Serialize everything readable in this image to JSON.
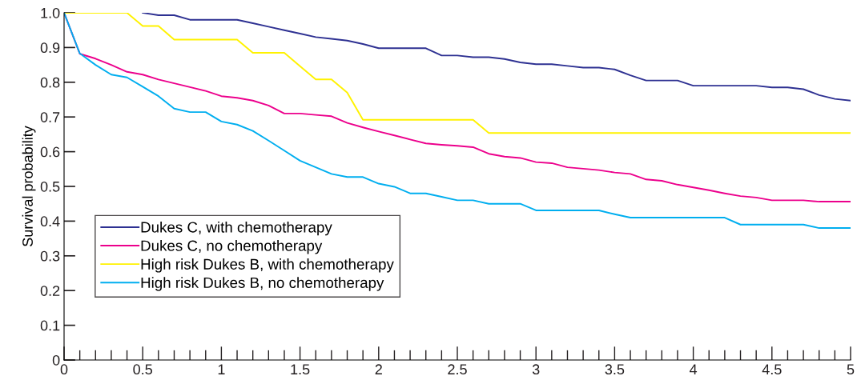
{
  "chart_data": {
    "type": "line",
    "ylabel": "Survival probability",
    "x": [
      0,
      0.1,
      0.2,
      0.3,
      0.4,
      0.5,
      0.6,
      0.7,
      0.8,
      0.9,
      1,
      1.1,
      1.2,
      1.3,
      1.4,
      1.5,
      1.6,
      1.7,
      1.8,
      1.9,
      2,
      2.1,
      2.2,
      2.3,
      2.4,
      2.5,
      2.6,
      2.7,
      2.8,
      2.9,
      3,
      3.1,
      3.2,
      3.3,
      3.4,
      3.5,
      3.6,
      3.7,
      3.8,
      3.9,
      4,
      4.1,
      4.2,
      4.3,
      4.4,
      4.5,
      4.6,
      4.7,
      4.8,
      4.9,
      5
    ],
    "series": [
      {
        "name": "Dukes C, with chemotherapy",
        "color": "#2e3192",
        "values": [
          null,
          null,
          null,
          null,
          null,
          1,
          0.993,
          0.993,
          0.98,
          0.98,
          0.98,
          0.98,
          0.97,
          0.96,
          0.95,
          0.94,
          0.93,
          0.925,
          0.92,
          0.91,
          0.898,
          0.898,
          0.898,
          0.898,
          0.877,
          0.877,
          0.872,
          0.872,
          0.867,
          0.857,
          0.852,
          0.852,
          0.847,
          0.842,
          0.842,
          0.837,
          0.82,
          0.805,
          0.805,
          0.805,
          0.79,
          0.79,
          0.79,
          0.79,
          0.79,
          0.785,
          0.785,
          0.78,
          0.763,
          0.752,
          0.747
        ]
      },
      {
        "name": "Dukes C, no chemotherapy",
        "color": "#ec008c",
        "values": [
          1,
          0.882,
          0.868,
          0.85,
          0.83,
          0.822,
          0.808,
          0.797,
          0.786,
          0.775,
          0.76,
          0.755,
          0.747,
          0.733,
          0.71,
          0.71,
          0.706,
          0.702,
          0.683,
          0.67,
          0.658,
          0.647,
          0.635,
          0.624,
          0.62,
          0.617,
          0.613,
          0.594,
          0.586,
          0.582,
          0.57,
          0.567,
          0.555,
          0.551,
          0.547,
          0.54,
          0.536,
          0.52,
          0.516,
          0.505,
          0.497,
          0.489,
          0.48,
          0.472,
          0.468,
          0.46,
          0.46,
          0.46,
          0.456,
          0.456,
          0.456
        ]
      },
      {
        "name": "High risk Dukes B, with chemotherapy",
        "color": "#fff200",
        "values": [
          1,
          1,
          1,
          1,
          1,
          0.962,
          0.962,
          0.923,
          0.923,
          0.923,
          0.923,
          0.923,
          0.885,
          0.885,
          0.885,
          0.846,
          0.808,
          0.808,
          0.77,
          0.692,
          0.692,
          0.692,
          0.692,
          0.692,
          0.692,
          0.692,
          0.692,
          0.654,
          0.654,
          0.654,
          0.654,
          0.654,
          0.654,
          0.654,
          0.654,
          0.654,
          0.654,
          0.654,
          0.654,
          0.654,
          0.654,
          0.654,
          0.654,
          0.654,
          0.654,
          0.654,
          0.654,
          0.654,
          0.654,
          0.654,
          0.654
        ]
      },
      {
        "name": "High risk Dukes B, no chemotherapy",
        "color": "#00aeef",
        "values": [
          1,
          0.883,
          0.85,
          0.822,
          0.814,
          0.787,
          0.76,
          0.724,
          0.714,
          0.714,
          0.687,
          0.678,
          0.66,
          0.632,
          0.603,
          0.574,
          0.555,
          0.536,
          0.527,
          0.527,
          0.508,
          0.499,
          0.48,
          0.48,
          0.47,
          0.46,
          0.46,
          0.45,
          0.45,
          0.45,
          0.431,
          0.431,
          0.431,
          0.431,
          0.431,
          0.42,
          0.41,
          0.41,
          0.41,
          0.41,
          0.41,
          0.41,
          0.41,
          0.39,
          0.39,
          0.39,
          0.39,
          0.39,
          0.38,
          0.38,
          0.38
        ]
      }
    ],
    "xlim": [
      0,
      5
    ],
    "ylim": [
      0,
      1
    ],
    "xticks": [
      0,
      {
        "value": 0.1,
        "label": null
      },
      {
        "value": 0.2,
        "label": null
      },
      {
        "value": 0.3,
        "label": null
      },
      {
        "value": 0.4,
        "label": null
      },
      0.5,
      {
        "value": 0.6,
        "label": null
      },
      {
        "value": 0.7,
        "label": null
      },
      {
        "value": 0.8,
        "label": null
      },
      {
        "value": 0.9,
        "label": null
      },
      1,
      {
        "value": 1.1,
        "label": null
      },
      {
        "value": 1.2,
        "label": null
      },
      {
        "value": 1.3,
        "label": null
      },
      {
        "value": 1.4,
        "label": null
      },
      1.5,
      {
        "value": 1.6,
        "label": null
      },
      {
        "value": 1.7,
        "label": null
      },
      {
        "value": 1.8,
        "label": null
      },
      {
        "value": 1.9,
        "label": null
      },
      2,
      {
        "value": 2.1,
        "label": null
      },
      {
        "value": 2.2,
        "label": null
      },
      {
        "value": 2.3,
        "label": null
      },
      {
        "value": 2.4,
        "label": null
      },
      2.5,
      {
        "value": 2.6,
        "label": null
      },
      {
        "value": 2.7,
        "label": null
      },
      {
        "value": 2.8,
        "label": null
      },
      {
        "value": 2.9,
        "label": null
      },
      3,
      {
        "value": 3.1,
        "label": null
      },
      {
        "value": 3.2,
        "label": null
      },
      {
        "value": 3.3,
        "label": null
      },
      {
        "value": 3.4,
        "label": null
      },
      3.5,
      {
        "value": 3.6,
        "label": null
      },
      {
        "value": 3.7,
        "label": null
      },
      {
        "value": 3.8,
        "label": null
      },
      {
        "value": 3.9,
        "label": null
      },
      4,
      {
        "value": 4.1,
        "label": null
      },
      {
        "value": 4.2,
        "label": null
      },
      {
        "value": 4.3,
        "label": null
      },
      {
        "value": 4.4,
        "label": null
      },
      4.5,
      {
        "value": 4.6,
        "label": null
      },
      {
        "value": 4.7,
        "label": null
      },
      {
        "value": 4.8,
        "label": null
      },
      {
        "value": 4.9,
        "label": null
      },
      5
    ],
    "yticks": [
      0,
      0.1,
      0.2,
      0.3,
      0.4,
      0.5,
      0.6,
      0.7,
      0.8,
      0.9,
      {
        "value": 1,
        "label": "1.0"
      }
    ],
    "grid": false,
    "legend": "bottom left",
    "marker": "none",
    "line_style": "solid"
  }
}
